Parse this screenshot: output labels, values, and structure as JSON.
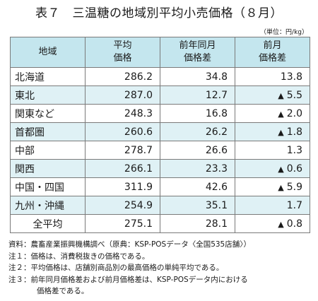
{
  "title": "表７　三温糖の地域別平均小売価格（８月）",
  "unit": "（単位：円/kg）",
  "headers": {
    "region": "地域",
    "avg_price": "平均\n価格",
    "yoy_diff": "前年同月\n価格差",
    "mom_diff": "前月\n価格差"
  },
  "rows": [
    {
      "region": "北海道",
      "price": "286.2",
      "yoy": "34.8",
      "mom": "13.8",
      "mom_neg": false
    },
    {
      "region": "東北",
      "price": "287.0",
      "yoy": "12.7",
      "mom": "5.5",
      "mom_neg": true
    },
    {
      "region": "関東など",
      "price": "248.3",
      "yoy": "16.8",
      "mom": "2.0",
      "mom_neg": true
    },
    {
      "region": "首都圏",
      "price": "260.6",
      "yoy": "26.2",
      "mom": "1.8",
      "mom_neg": true
    },
    {
      "region": "中部",
      "price": "278.7",
      "yoy": "26.6",
      "mom": "1.3",
      "mom_neg": false
    },
    {
      "region": "関西",
      "price": "266.1",
      "yoy": "23.3",
      "mom": "0.6",
      "mom_neg": true
    },
    {
      "region": "中国・四国",
      "price": "311.9",
      "yoy": "42.6",
      "mom": "5.9",
      "mom_neg": true
    },
    {
      "region": "九州・沖縄",
      "price": "254.9",
      "yoy": "35.1",
      "mom": "1.7",
      "mom_neg": false
    },
    {
      "region": "全平均",
      "price": "275.1",
      "yoy": "28.1",
      "mom": "0.8",
      "mom_neg": true
    }
  ],
  "negative_marker": "▲",
  "notes": [
    {
      "label": "資料：",
      "text": "農畜産業振興機構調べ（原典：KSP-POSデータ〈全国535店舗〉）"
    },
    {
      "label": "注１：",
      "text": "価格は、消費税抜きの価格である。"
    },
    {
      "label": "注２：",
      "text": "平均価格は、店舗別商品別の最高価格の単純平均である。"
    },
    {
      "label": "注３：",
      "text": "前年同月価格差および前月価格差は、KSP-POSデータ内における"
    },
    {
      "label": "",
      "text": "価格差である。"
    }
  ],
  "colors": {
    "header_bg": "#c4e6ee",
    "alt_row_bg": "#dff1f5",
    "border": "#7a7a7a"
  }
}
